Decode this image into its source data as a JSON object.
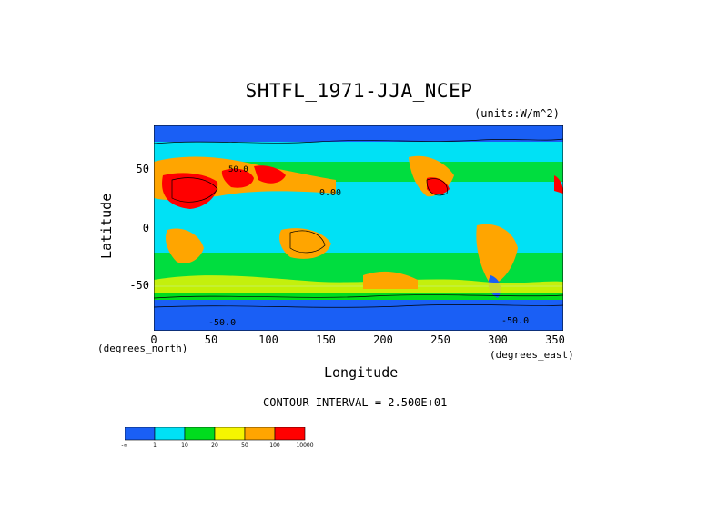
{
  "chart_data": {
    "type": "heatmap",
    "title": "SHTFL_1971-JJA_NCEP",
    "units_label": "(units:W/m^2)",
    "xlabel": "Longitude",
    "ylabel": "Latitude",
    "x_unit_label": "(degrees_east)",
    "y_unit_label": "(degrees_north)",
    "xlim": [
      0,
      357.5
    ],
    "ylim": [
      -90,
      90
    ],
    "x_ticks": [
      "0",
      "50",
      "100",
      "150",
      "200",
      "250",
      "300",
      "350"
    ],
    "y_ticks": [
      "50",
      "0",
      "-50"
    ],
    "contour_interval_text": "CONTOUR INTERVAL = 2.500E+01",
    "contour_labels": [
      "0.00",
      "50.0",
      "-50.0",
      "-50.0"
    ],
    "colorbar": {
      "bins": [
        {
          "color": "#1a5ff5"
        },
        {
          "color": "#00e1f5"
        },
        {
          "color": "#00dc1e"
        },
        {
          "color": "#f5f500"
        },
        {
          "color": "#ffa500"
        },
        {
          "color": "#ff0000"
        }
      ],
      "tick_labels": [
        "-∞",
        "1",
        "10",
        "20",
        "50",
        "100",
        "10000"
      ]
    }
  }
}
